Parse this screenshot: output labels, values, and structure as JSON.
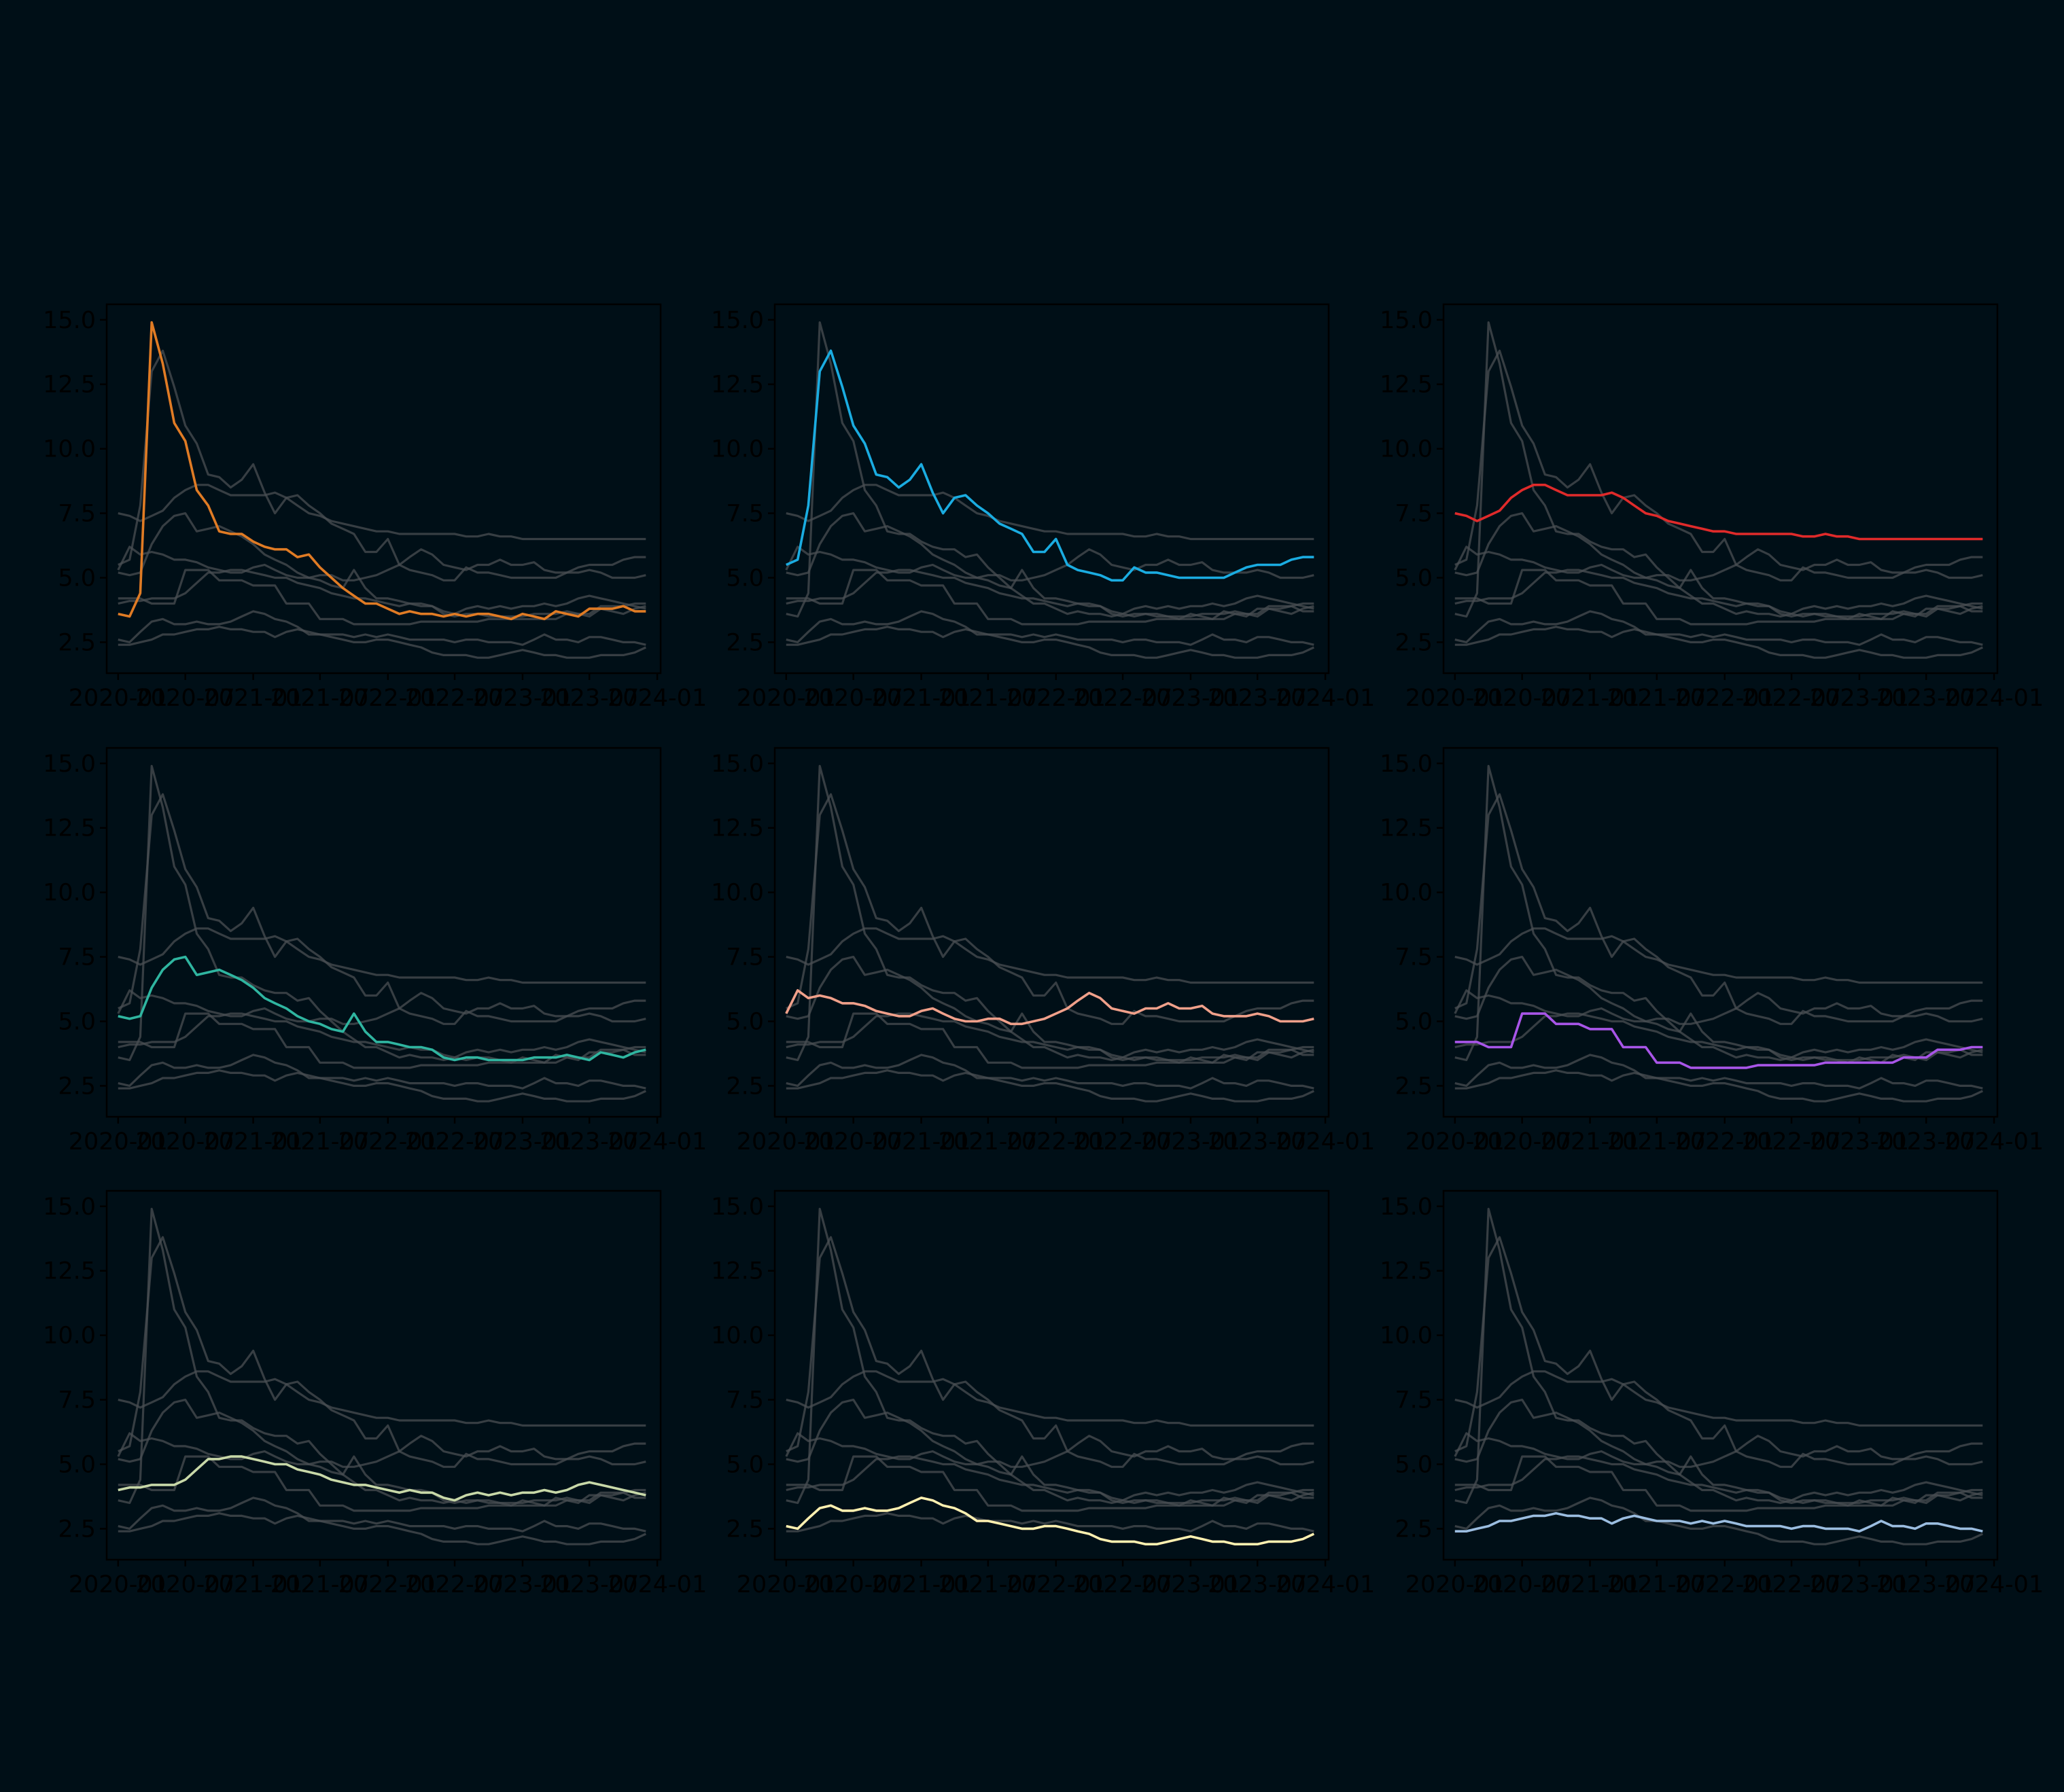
{
  "figure": {
    "background": "#000f17",
    "axes_facecolor": "#000f17",
    "context_color": "#4a4f53",
    "tick_color": "#000000"
  },
  "chart_data": {
    "type": "line",
    "layout": "small-multiples 3x3",
    "title": "",
    "xlabel": "",
    "ylabel": "",
    "x": [
      "2020-01",
      "2020-02",
      "2020-03",
      "2020-04",
      "2020-05",
      "2020-06",
      "2020-07",
      "2020-08",
      "2020-09",
      "2020-10",
      "2020-11",
      "2020-12",
      "2021-01",
      "2021-02",
      "2021-03",
      "2021-04",
      "2021-05",
      "2021-06",
      "2021-07",
      "2021-08",
      "2021-09",
      "2021-10",
      "2021-11",
      "2021-12",
      "2022-01",
      "2022-02",
      "2022-03",
      "2022-04",
      "2022-05",
      "2022-06",
      "2022-07",
      "2022-08",
      "2022-09",
      "2022-10",
      "2022-11",
      "2022-12",
      "2023-01",
      "2023-02",
      "2023-03",
      "2023-04",
      "2023-05",
      "2023-06",
      "2023-07",
      "2023-08",
      "2023-09",
      "2023-10",
      "2023-11",
      "2023-12"
    ],
    "xlim": [
      "2019-12-01",
      "2024-01-10"
    ],
    "ylim": [
      1.3,
      15.6
    ],
    "yticks": [
      2.5,
      5.0,
      7.5,
      10.0,
      12.5,
      15.0
    ],
    "ytick_labels": [
      "2.5",
      "5.0",
      "7.5",
      "10.0",
      "12.5",
      "15.0"
    ],
    "xtick_labels": [
      "2020-01",
      "2020-07",
      "2021-01",
      "2021-07",
      "2022-01",
      "2022-07",
      "2023-01",
      "2023-07",
      "2024-01"
    ],
    "grid": false,
    "series": [
      {
        "color": "#e07b24",
        "values": [
          3.6,
          3.5,
          4.4,
          14.9,
          13.3,
          11.0,
          10.3,
          8.4,
          7.8,
          6.8,
          6.7,
          6.7,
          6.4,
          6.2,
          6.1,
          6.1,
          5.8,
          5.9,
          5.4,
          5.0,
          4.6,
          4.3,
          4.0,
          4.0,
          3.8,
          3.6,
          3.7,
          3.6,
          3.6,
          3.5,
          3.6,
          3.5,
          3.6,
          3.6,
          3.5,
          3.4,
          3.6,
          3.5,
          3.4,
          3.7,
          3.6,
          3.5,
          3.8,
          3.8,
          3.8,
          3.9,
          3.7,
          3.7
        ]
      },
      {
        "color": "#1aace1",
        "values": [
          5.5,
          5.7,
          7.8,
          13.0,
          13.8,
          12.4,
          10.9,
          10.2,
          9.0,
          8.9,
          8.5,
          8.8,
          9.4,
          8.3,
          7.5,
          8.1,
          8.2,
          7.8,
          7.5,
          7.1,
          6.9,
          6.7,
          6.0,
          6.0,
          6.5,
          5.5,
          5.3,
          5.2,
          5.1,
          4.9,
          4.9,
          5.4,
          5.2,
          5.2,
          5.1,
          5.0,
          5.0,
          5.0,
          5.0,
          5.0,
          5.2,
          5.4,
          5.5,
          5.5,
          5.5,
          5.7,
          5.8,
          5.8
        ]
      },
      {
        "color": "#e02a2a",
        "values": [
          7.5,
          7.4,
          7.2,
          7.4,
          7.6,
          8.1,
          8.4,
          8.6,
          8.6,
          8.4,
          8.2,
          8.2,
          8.2,
          8.2,
          8.3,
          8.1,
          7.8,
          7.5,
          7.4,
          7.2,
          7.1,
          7.0,
          6.9,
          6.8,
          6.8,
          6.7,
          6.7,
          6.7,
          6.7,
          6.7,
          6.7,
          6.6,
          6.6,
          6.7,
          6.6,
          6.6,
          6.5,
          6.5,
          6.5,
          6.5,
          6.5,
          6.5,
          6.5,
          6.5,
          6.5,
          6.5,
          6.5,
          6.5
        ]
      },
      {
        "color": "#2fb5a0",
        "values": [
          5.2,
          5.1,
          5.2,
          6.3,
          7.0,
          7.4,
          7.5,
          6.8,
          6.9,
          7.0,
          6.8,
          6.6,
          6.3,
          5.9,
          5.7,
          5.5,
          5.2,
          5.0,
          4.9,
          4.7,
          4.6,
          5.3,
          4.6,
          4.2,
          4.2,
          4.1,
          4.0,
          4.0,
          3.9,
          3.6,
          3.5,
          3.6,
          3.6,
          3.5,
          3.5,
          3.5,
          3.5,
          3.6,
          3.6,
          3.6,
          3.7,
          3.6,
          3.5,
          3.8,
          3.7,
          3.6,
          3.8,
          3.9
        ]
      },
      {
        "color": "#f0a08a",
        "values": [
          5.3,
          6.2,
          5.9,
          6.0,
          5.9,
          5.7,
          5.7,
          5.6,
          5.4,
          5.3,
          5.2,
          5.2,
          5.4,
          5.5,
          5.3,
          5.1,
          5.0,
          5.0,
          5.1,
          5.1,
          4.9,
          4.9,
          5.0,
          5.1,
          5.3,
          5.5,
          5.8,
          6.1,
          5.9,
          5.5,
          5.4,
          5.3,
          5.5,
          5.5,
          5.7,
          5.5,
          5.5,
          5.6,
          5.3,
          5.2,
          5.2,
          5.2,
          5.3,
          5.2,
          5.0,
          5.0,
          5.0,
          5.1
        ]
      },
      {
        "color": "#a855e8",
        "values": [
          4.2,
          4.2,
          4.2,
          4.0,
          4.0,
          4.0,
          5.3,
          5.3,
          5.3,
          4.9,
          4.9,
          4.9,
          4.7,
          4.7,
          4.7,
          4.0,
          4.0,
          4.0,
          3.4,
          3.4,
          3.4,
          3.2,
          3.2,
          3.2,
          3.2,
          3.2,
          3.2,
          3.3,
          3.3,
          3.3,
          3.3,
          3.3,
          3.3,
          3.4,
          3.4,
          3.4,
          3.4,
          3.4,
          3.4,
          3.4,
          3.6,
          3.6,
          3.6,
          3.9,
          3.9,
          3.9,
          4.0,
          4.0
        ]
      },
      {
        "color": "#c8d8a8",
        "values": [
          4.0,
          4.1,
          4.1,
          4.2,
          4.2,
          4.2,
          4.4,
          4.8,
          5.2,
          5.2,
          5.3,
          5.3,
          5.2,
          5.1,
          5.0,
          5.0,
          4.8,
          4.7,
          4.6,
          4.4,
          4.3,
          4.2,
          4.2,
          4.1,
          4.0,
          3.9,
          4.0,
          3.9,
          3.9,
          3.7,
          3.6,
          3.8,
          3.9,
          3.8,
          3.9,
          3.8,
          3.9,
          3.9,
          4.0,
          3.9,
          4.0,
          4.2,
          4.3,
          4.2,
          4.1,
          4.0,
          3.9,
          3.8
        ]
      },
      {
        "color": "#fff0b0",
        "values": [
          2.6,
          2.5,
          2.9,
          3.3,
          3.4,
          3.2,
          3.2,
          3.3,
          3.2,
          3.2,
          3.3,
          3.5,
          3.7,
          3.6,
          3.4,
          3.3,
          3.1,
          2.8,
          2.8,
          2.7,
          2.6,
          2.5,
          2.5,
          2.6,
          2.6,
          2.5,
          2.4,
          2.3,
          2.1,
          2.0,
          2.0,
          2.0,
          1.9,
          1.9,
          2.0,
          2.1,
          2.2,
          2.1,
          2.0,
          2.0,
          1.9,
          1.9,
          1.9,
          2.0,
          2.0,
          2.0,
          2.1,
          2.3
        ]
      },
      {
        "color": "#9bbde0",
        "values": [
          2.4,
          2.4,
          2.5,
          2.6,
          2.8,
          2.8,
          2.9,
          3.0,
          3.0,
          3.1,
          3.0,
          3.0,
          2.9,
          2.9,
          2.7,
          2.9,
          3.0,
          2.9,
          2.8,
          2.8,
          2.8,
          2.7,
          2.8,
          2.7,
          2.8,
          2.7,
          2.6,
          2.6,
          2.6,
          2.6,
          2.5,
          2.6,
          2.6,
          2.5,
          2.5,
          2.5,
          2.4,
          2.6,
          2.8,
          2.6,
          2.6,
          2.5,
          2.7,
          2.7,
          2.6,
          2.5,
          2.5,
          2.4
        ]
      }
    ]
  }
}
